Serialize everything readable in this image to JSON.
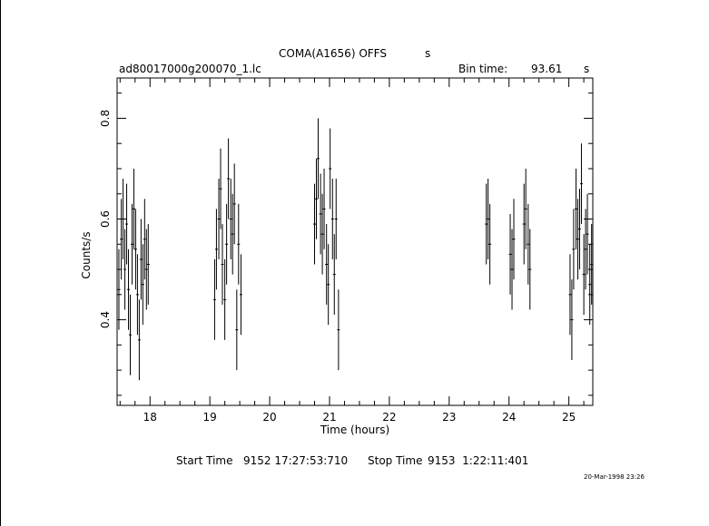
{
  "header": {
    "title": "COMA(A1656) OFFS",
    "title_suffix": "s",
    "filename": "ad80017000g200070_1.lc",
    "bin_label": "Bin time:",
    "bin_value": "93.61",
    "bin_unit": "s"
  },
  "footer": {
    "start_label": "Start Time",
    "start_value": "9152 17:27:53:710",
    "stop_label": "Stop Time",
    "stop_value": "9153  1:22:11:401",
    "timestamp": "20-Mar-1998 23:26"
  },
  "chart_data": {
    "type": "scatter",
    "xlabel": "Time (hours)",
    "ylabel": "Counts/s",
    "xlim": [
      17.45,
      25.4
    ],
    "ylim": [
      0.23,
      0.88
    ],
    "xticks": [
      18,
      19,
      20,
      21,
      22,
      23,
      24,
      25
    ],
    "yticks": [
      0.4,
      0.6,
      0.8
    ],
    "error_bars": true,
    "series": [
      {
        "points": [
          [
            17.48,
            0.46,
            0.08
          ],
          [
            17.52,
            0.56,
            0.08
          ],
          [
            17.55,
            0.6,
            0.08
          ],
          [
            17.58,
            0.5,
            0.08
          ],
          [
            17.61,
            0.59,
            0.08
          ],
          [
            17.64,
            0.46,
            0.08
          ],
          [
            17.67,
            0.37,
            0.08
          ],
          [
            17.7,
            0.55,
            0.08
          ],
          [
            17.73,
            0.62,
            0.08
          ],
          [
            17.76,
            0.54,
            0.08
          ],
          [
            17.79,
            0.45,
            0.08
          ],
          [
            17.82,
            0.36,
            0.08
          ],
          [
            17.85,
            0.52,
            0.08
          ],
          [
            17.88,
            0.47,
            0.08
          ],
          [
            17.91,
            0.56,
            0.08
          ],
          [
            17.94,
            0.5,
            0.08
          ],
          [
            17.97,
            0.51,
            0.08
          ],
          [
            19.08,
            0.44,
            0.08
          ],
          [
            19.11,
            0.54,
            0.08
          ],
          [
            19.15,
            0.6,
            0.08
          ],
          [
            19.18,
            0.66,
            0.08
          ],
          [
            19.21,
            0.51,
            0.08
          ],
          [
            19.25,
            0.44,
            0.08
          ],
          [
            19.28,
            0.55,
            0.08
          ],
          [
            19.31,
            0.68,
            0.08
          ],
          [
            19.35,
            0.6,
            0.08
          ],
          [
            19.38,
            0.57,
            0.08
          ],
          [
            19.41,
            0.63,
            0.08
          ],
          [
            19.45,
            0.38,
            0.08
          ],
          [
            19.48,
            0.55,
            0.08
          ],
          [
            19.52,
            0.45,
            0.08
          ],
          [
            20.75,
            0.59,
            0.08
          ],
          [
            20.78,
            0.64,
            0.08
          ],
          [
            20.81,
            0.72,
            0.08
          ],
          [
            20.85,
            0.61,
            0.08
          ],
          [
            20.88,
            0.57,
            0.08
          ],
          [
            20.91,
            0.62,
            0.08
          ],
          [
            20.95,
            0.51,
            0.08
          ],
          [
            20.98,
            0.47,
            0.08
          ],
          [
            21.01,
            0.7,
            0.08
          ],
          [
            21.05,
            0.6,
            0.08
          ],
          [
            21.08,
            0.49,
            0.08
          ],
          [
            21.11,
            0.6,
            0.08
          ],
          [
            21.15,
            0.38,
            0.08
          ],
          [
            23.62,
            0.59,
            0.08
          ],
          [
            23.65,
            0.6,
            0.08
          ],
          [
            23.68,
            0.55,
            0.08
          ],
          [
            24.02,
            0.53,
            0.08
          ],
          [
            24.05,
            0.5,
            0.08
          ],
          [
            24.08,
            0.56,
            0.08
          ],
          [
            24.25,
            0.59,
            0.08
          ],
          [
            24.28,
            0.62,
            0.08
          ],
          [
            24.32,
            0.55,
            0.08
          ],
          [
            24.35,
            0.5,
            0.08
          ],
          [
            25.02,
            0.45,
            0.08
          ],
          [
            25.05,
            0.4,
            0.08
          ],
          [
            25.08,
            0.54,
            0.08
          ],
          [
            25.12,
            0.62,
            0.08
          ],
          [
            25.15,
            0.56,
            0.08
          ],
          [
            25.18,
            0.58,
            0.08
          ],
          [
            25.21,
            0.67,
            0.08
          ],
          [
            25.25,
            0.49,
            0.08
          ],
          [
            25.28,
            0.54,
            0.08
          ],
          [
            25.31,
            0.57,
            0.08
          ],
          [
            25.35,
            0.47,
            0.08
          ],
          [
            25.38,
            0.51,
            0.08
          ]
        ]
      }
    ]
  }
}
